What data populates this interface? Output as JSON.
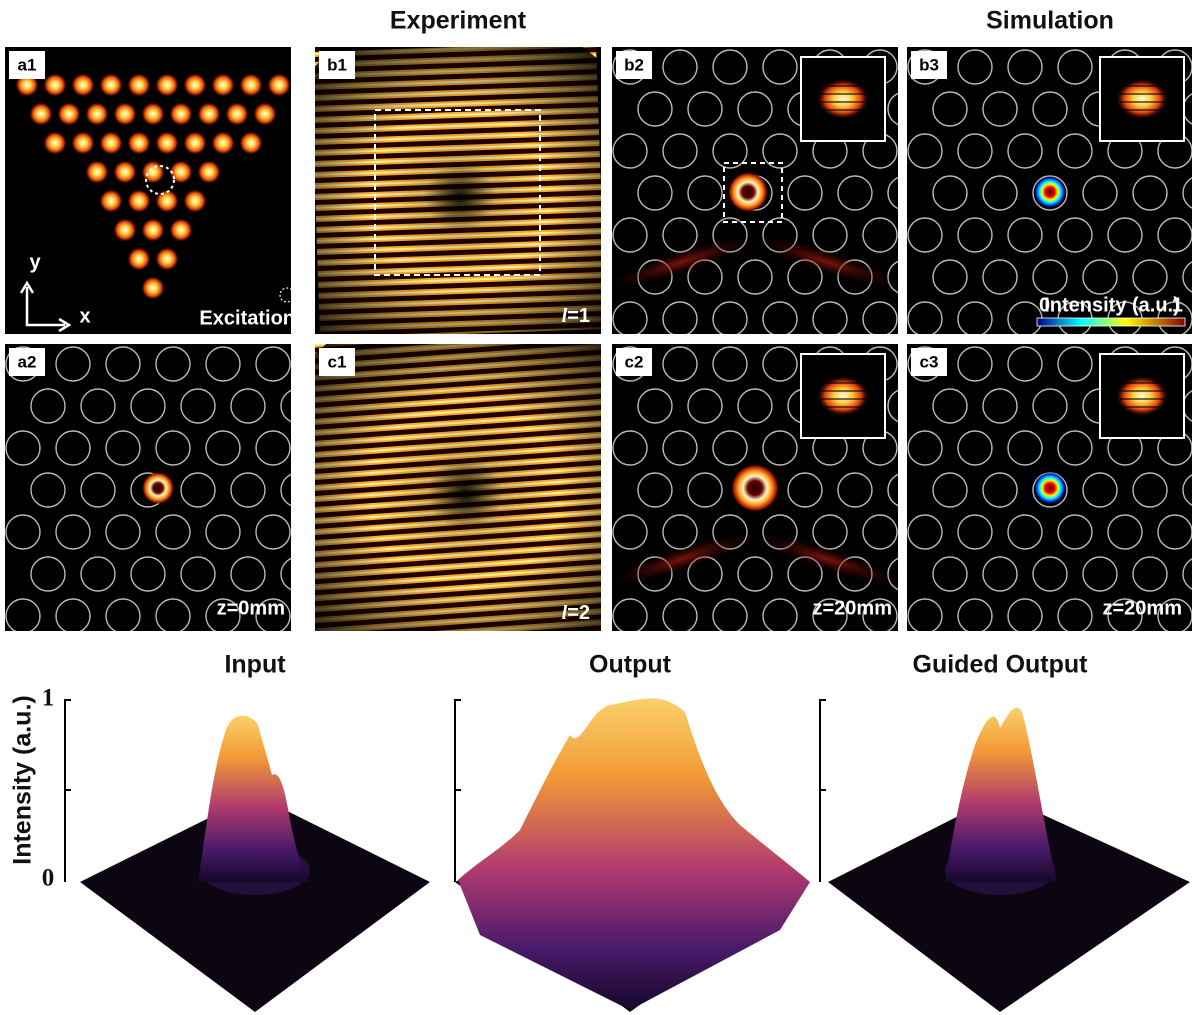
{
  "headers": {
    "experiment": "Experiment",
    "simulation": "Simulation"
  },
  "panels": [
    {
      "label": "a1"
    },
    {
      "label": "b1"
    },
    {
      "label": "b2"
    },
    {
      "label": "b3"
    },
    {
      "label": "a2"
    },
    {
      "label": "c1"
    },
    {
      "label": "c2"
    },
    {
      "label": "c3"
    }
  ],
  "annotations": {
    "axis_y": "y",
    "axis_x": "x",
    "excitation": "Excitation",
    "b1_mode": {
      "symbol": "l",
      "text": "=1"
    },
    "c1_mode": {
      "symbol": "l",
      "text": "=2"
    },
    "a2_distance": "z=0mm",
    "c2_distance": "z=20mm",
    "c3_distance": "z=20mm"
  },
  "colorbar": {
    "min": "0",
    "label": "Intensity (a.u.)",
    "max": "1"
  },
  "profiles": {
    "titles": [
      "Input",
      "Output",
      "Guided Output"
    ],
    "y_label": "Intensity (a.u.)",
    "y_ticks": [
      "1",
      "0"
    ]
  }
}
